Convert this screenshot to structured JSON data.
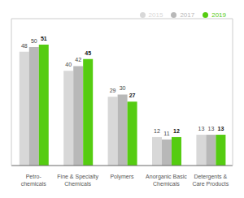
{
  "chart_data": {
    "type": "bar",
    "categories": [
      "Petro-\nchemicals",
      "Fine & Specialty\nChemicals",
      "Polymers",
      "Anorganic Basic\nChemicals",
      "Detergents &\nCare Products"
    ],
    "series": [
      {
        "name": "2015",
        "color": "#d8d8d8",
        "values": [
          48,
          40,
          29,
          12,
          13
        ]
      },
      {
        "name": "2017",
        "color": "#b8b8b8",
        "values": [
          50,
          42,
          30,
          11,
          13
        ]
      },
      {
        "name": "2019",
        "color": "#55cc11",
        "values": [
          51,
          45,
          27,
          12,
          13
        ]
      }
    ],
    "ylim": [
      0,
      62
    ],
    "legend": "upper right",
    "data_labels": true,
    "tick_labels": "x",
    "grid": false
  }
}
